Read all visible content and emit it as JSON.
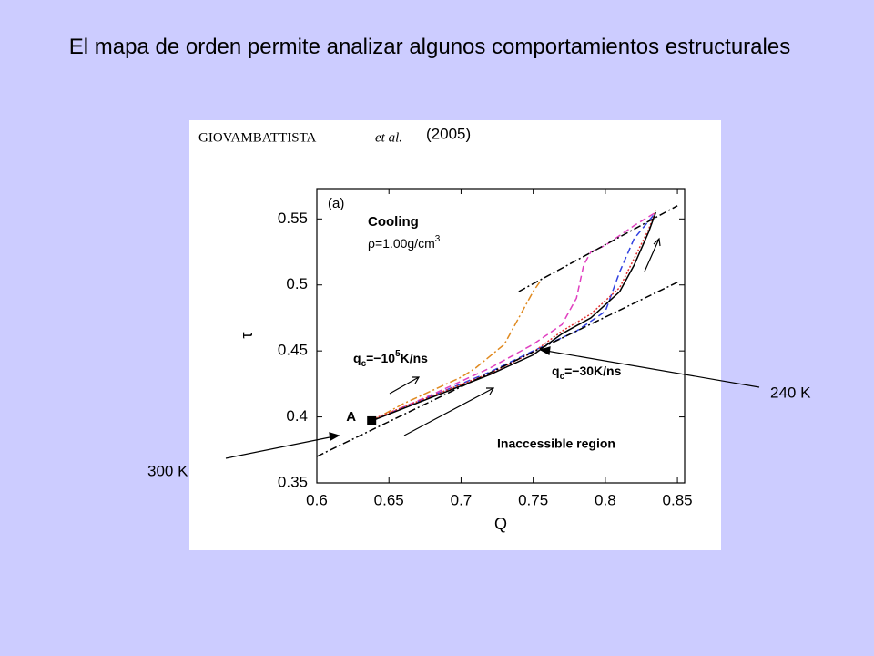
{
  "title": "El mapa de orden permite analizar algunos comportamientos estructurales",
  "source": {
    "authors": "GIOVAMBATTISTA",
    "etal": "et al.",
    "year": "(2005)"
  },
  "annotations": [
    "300 K",
    "240 K"
  ],
  "chart_data": {
    "type": "line",
    "panel": "(a)",
    "x_label": "Q",
    "y_label": "τ",
    "xlim": [
      0.6,
      0.855
    ],
    "ylim": [
      0.35,
      0.573
    ],
    "xticks": [
      0.6,
      0.65,
      0.7,
      0.75,
      0.8,
      0.85
    ],
    "yticks": [
      0.35,
      0.4,
      0.45,
      0.5,
      0.55
    ],
    "notes": {
      "cooling": "Cooling",
      "density": [
        "ρ=1.00g/cm",
        "3"
      ],
      "fast": [
        "q",
        "c",
        "=−10",
        "5",
        "K/ns"
      ],
      "slow": [
        "q",
        "c",
        "=−30K/ns"
      ],
      "region": "Inaccessible region"
    },
    "point": {
      "label": "A",
      "x": 0.638,
      "y": 0.397
    },
    "series": [
      {
        "color": "#e08a20",
        "style": "dashdot",
        "x": [
          0.638,
          0.66,
          0.68,
          0.7,
          0.71,
          0.73,
          0.74,
          0.75,
          0.755
        ],
        "values": [
          0.397,
          0.41,
          0.42,
          0.43,
          0.437,
          0.455,
          0.475,
          0.495,
          0.503
        ]
      },
      {
        "color": "#e040c0",
        "style": "dash",
        "x": [
          0.638,
          0.68,
          0.72,
          0.75,
          0.77,
          0.78,
          0.785,
          0.79,
          0.8,
          0.82,
          0.835
        ],
        "values": [
          0.397,
          0.417,
          0.437,
          0.455,
          0.47,
          0.49,
          0.515,
          0.525,
          0.53,
          0.545,
          0.555
        ]
      },
      {
        "color": "#3040e0",
        "style": "dash",
        "x": [
          0.638,
          0.68,
          0.72,
          0.75,
          0.78,
          0.8,
          0.81,
          0.82,
          0.835
        ],
        "values": [
          0.397,
          0.416,
          0.434,
          0.45,
          0.465,
          0.48,
          0.51,
          0.535,
          0.555
        ]
      },
      {
        "color": "#e03030",
        "style": "dot",
        "x": [
          0.638,
          0.68,
          0.72,
          0.75,
          0.77,
          0.79,
          0.81,
          0.82,
          0.83,
          0.835
        ],
        "values": [
          0.398,
          0.416,
          0.433,
          0.449,
          0.465,
          0.478,
          0.498,
          0.52,
          0.542,
          0.556
        ]
      },
      {
        "color": "#000000",
        "style": "solid",
        "x": [
          0.638,
          0.68,
          0.72,
          0.75,
          0.77,
          0.79,
          0.81,
          0.82,
          0.83,
          0.835
        ],
        "values": [
          0.397,
          0.415,
          0.432,
          0.447,
          0.463,
          0.475,
          0.495,
          0.515,
          0.54,
          0.555
        ]
      },
      {
        "color": "#000000",
        "style": "dashdot",
        "x": [
          0.74,
          0.85
        ],
        "values": [
          0.495,
          0.56
        ]
      },
      {
        "color": "#000000",
        "style": "dashdot",
        "x": [
          0.6,
          0.85
        ],
        "values": [
          0.37,
          0.502
        ]
      }
    ]
  }
}
